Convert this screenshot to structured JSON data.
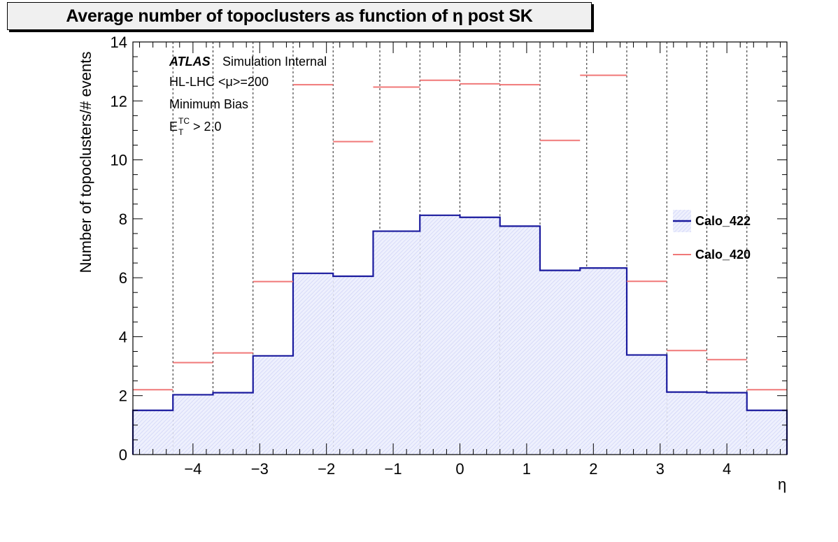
{
  "chart_data": {
    "type": "bar",
    "title": "Average number of topoclusters as function of η post SK",
    "xlabel": "η",
    "ylabel": "Number of topoclusters/# events",
    "xlim": [
      -4.9,
      4.9
    ],
    "ylim": [
      0,
      14
    ],
    "x_ticks": [
      -4,
      -3,
      -2,
      -1,
      0,
      1,
      2,
      3,
      4
    ],
    "y_ticks": [
      0,
      2,
      4,
      6,
      8,
      10,
      12,
      14
    ],
    "grid_x": [
      -4.3,
      -3.7,
      -3.1,
      -2.5,
      -1.9,
      -1.2,
      -0.6,
      0,
      0.6,
      1.2,
      1.9,
      2.5,
      3.1,
      3.7,
      4.3
    ],
    "bin_edges": [
      -4.9,
      -4.3,
      -3.7,
      -3.1,
      -2.5,
      -1.9,
      -1.3,
      -0.6,
      0,
      0.6,
      1.2,
      1.8,
      2.5,
      3.1,
      3.7,
      4.3,
      4.9
    ],
    "series": [
      {
        "name": "Calo_422",
        "color": "#1a1a9e",
        "fill": "#e3e6fb",
        "style": "filled-step",
        "values": [
          1.5,
          2.03,
          2.1,
          3.35,
          6.15,
          6.05,
          7.58,
          8.12,
          8.05,
          7.75,
          6.25,
          6.33,
          3.38,
          2.12,
          2.1,
          1.5
        ]
      },
      {
        "name": "Calo_420",
        "color": "#f07878",
        "style": "horizontal-markers",
        "values": [
          2.2,
          3.12,
          3.45,
          5.87,
          12.55,
          10.62,
          12.47,
          12.7,
          12.58,
          12.55,
          10.66,
          12.87,
          5.88,
          3.53,
          3.22,
          2.2
        ]
      }
    ],
    "annotations": {
      "atlas_bold": "ATLAS",
      "atlas_rest": "Simulation Internal",
      "line2": "HL-LHC <μ>=200",
      "line3": "Minimum Bias",
      "line4_base": "E",
      "line4_sup": "TC",
      "line4_sub": "T",
      "line4_rest": "> 2.0"
    },
    "legend_position": "right",
    "grid": "vertical dashed at bin edges"
  }
}
